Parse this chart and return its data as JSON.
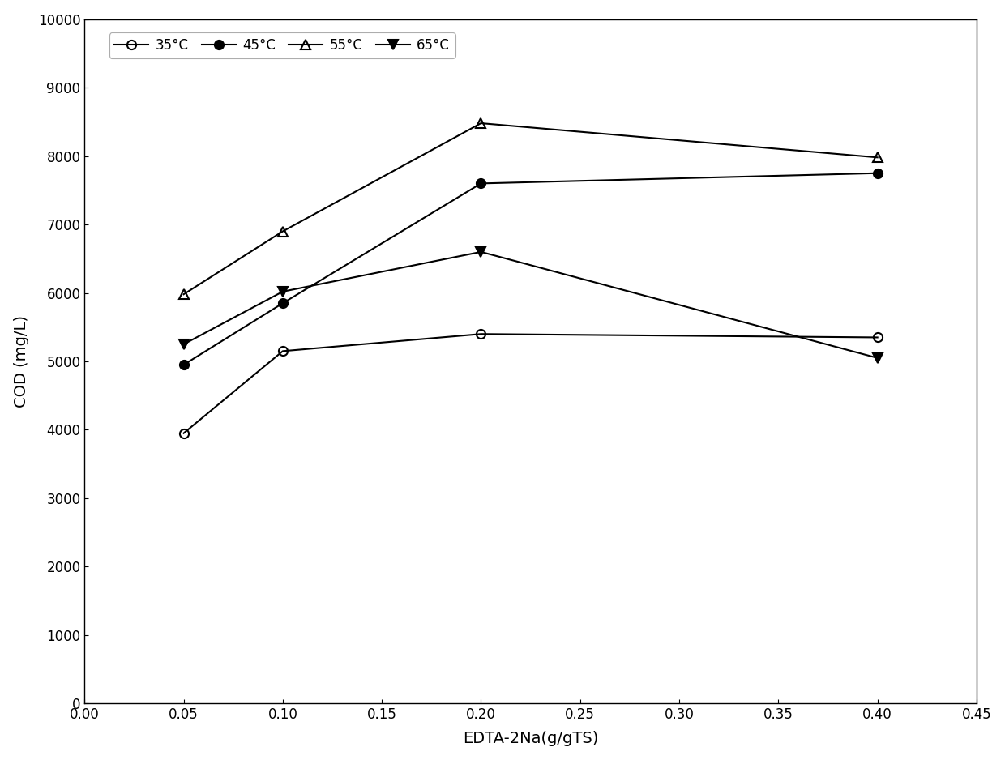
{
  "x_values": [
    0.05,
    0.1,
    0.2,
    0.4
  ],
  "series": [
    {
      "label": "35°C",
      "y": [
        3950,
        5150,
        5400,
        5350
      ],
      "color": "#000000",
      "marker": "o",
      "fillstyle": "none",
      "linewidth": 1.5,
      "markersize": 8
    },
    {
      "label": "45°C",
      "y": [
        4950,
        5850,
        7600,
        7750
      ],
      "color": "#000000",
      "marker": "o",
      "fillstyle": "full",
      "linewidth": 1.5,
      "markersize": 8
    },
    {
      "label": "55°C",
      "y": [
        5980,
        6900,
        8480,
        7980
      ],
      "color": "#000000",
      "marker": "^",
      "fillstyle": "none",
      "linewidth": 1.5,
      "markersize": 8
    },
    {
      "label": "65°C",
      "y": [
        5250,
        6020,
        6600,
        5050
      ],
      "color": "#000000",
      "marker": "v",
      "fillstyle": "full",
      "linewidth": 1.5,
      "markersize": 8
    }
  ],
  "xlabel": "EDTA-2Na(g/gTS)",
  "ylabel": "COD (mg/L)",
  "xlim": [
    0.0,
    0.45
  ],
  "ylim": [
    0,
    10000
  ],
  "xticks": [
    0.0,
    0.05,
    0.1,
    0.15,
    0.2,
    0.25,
    0.3,
    0.35,
    0.4,
    0.45
  ],
  "yticks": [
    0,
    1000,
    2000,
    3000,
    4000,
    5000,
    6000,
    7000,
    8000,
    9000,
    10000
  ],
  "ytick_labels": [
    "0",
    "1000",
    "2000",
    "3000",
    "4000",
    "5000",
    "6000",
    "7000",
    "8000",
    "9000",
    "10000"
  ],
  "legend_loc": "upper left",
  "background_color": "#ffffff",
  "grid": false,
  "figsize": [
    12.4,
    9.38
  ],
  "dpi": 100
}
